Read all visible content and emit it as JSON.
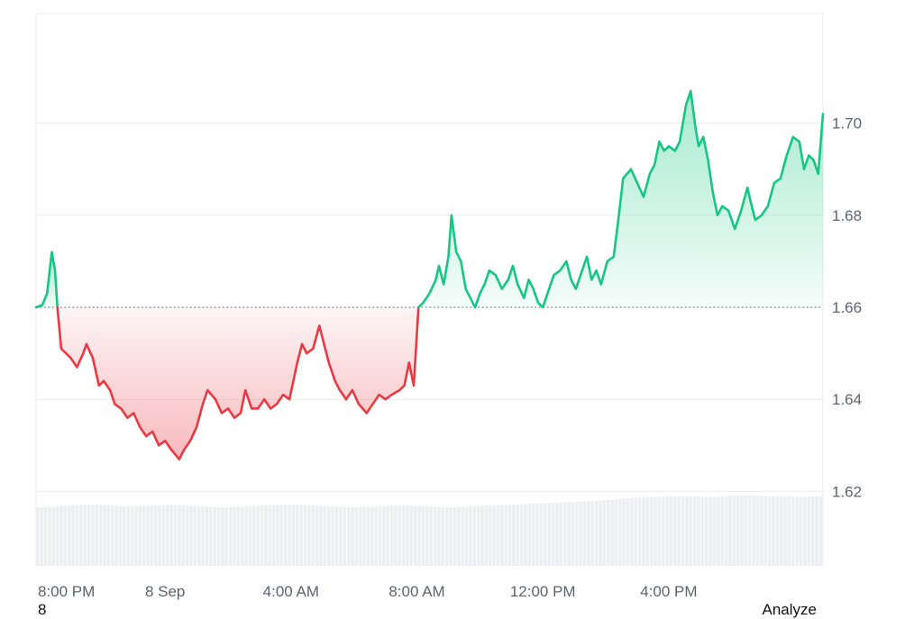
{
  "chart_data": {
    "type": "area",
    "baseline": 1.66,
    "ylim": [
      1.6,
      1.72
    ],
    "y_ticks": [
      {
        "value": 1.7,
        "label": "1.70"
      },
      {
        "value": 1.68,
        "label": "1.68"
      },
      {
        "value": 1.66,
        "label": "1.66"
      },
      {
        "value": 1.64,
        "label": "1.64"
      },
      {
        "value": 1.62,
        "label": "1.62"
      }
    ],
    "x_ticks": [
      {
        "hours": 0.0,
        "label": "8:00 PM"
      },
      {
        "hours": 4.0,
        "label": "8 Sep"
      },
      {
        "hours": 8.0,
        "label": "4:00 AM"
      },
      {
        "hours": 12.0,
        "label": "8:00 AM"
      },
      {
        "hours": 16.0,
        "label": "12:00 PM"
      },
      {
        "hours": 20.0,
        "label": "4:00 PM"
      }
    ],
    "xlim_hours": [
      -0.1,
      24.9
    ],
    "colors": {
      "up": "#16c784",
      "down": "#ea3943",
      "up_fill": "#16c784",
      "down_fill": "#ea3943",
      "grid": "#e9ecef",
      "volume": "#eceef1",
      "baseline": "#6b7280"
    },
    "series": [
      {
        "points": [
          [
            -0.1,
            1.66
          ],
          [
            0.1,
            1.6605
          ],
          [
            0.25,
            1.663
          ],
          [
            0.4,
            1.672
          ],
          [
            0.5,
            1.668
          ],
          [
            0.58,
            1.66
          ],
          [
            0.7,
            1.651
          ],
          [
            0.85,
            1.65
          ],
          [
            1.0,
            1.649
          ],
          [
            1.2,
            1.647
          ],
          [
            1.4,
            1.65
          ],
          [
            1.5,
            1.652
          ],
          [
            1.7,
            1.649
          ],
          [
            1.9,
            1.643
          ],
          [
            2.05,
            1.644
          ],
          [
            2.25,
            1.642
          ],
          [
            2.4,
            1.639
          ],
          [
            2.6,
            1.638
          ],
          [
            2.8,
            1.636
          ],
          [
            3.0,
            1.637
          ],
          [
            3.2,
            1.634
          ],
          [
            3.4,
            1.632
          ],
          [
            3.6,
            1.633
          ],
          [
            3.8,
            1.63
          ],
          [
            4.0,
            1.631
          ],
          [
            4.2,
            1.629
          ],
          [
            4.45,
            1.627
          ],
          [
            4.6,
            1.629
          ],
          [
            4.8,
            1.631
          ],
          [
            5.0,
            1.634
          ],
          [
            5.2,
            1.639
          ],
          [
            5.35,
            1.642
          ],
          [
            5.6,
            1.64
          ],
          [
            5.8,
            1.637
          ],
          [
            6.0,
            1.638
          ],
          [
            6.2,
            1.636
          ],
          [
            6.4,
            1.637
          ],
          [
            6.55,
            1.642
          ],
          [
            6.75,
            1.638
          ],
          [
            6.95,
            1.638
          ],
          [
            7.15,
            1.64
          ],
          [
            7.35,
            1.638
          ],
          [
            7.55,
            1.639
          ],
          [
            7.75,
            1.641
          ],
          [
            7.95,
            1.64
          ],
          [
            8.2,
            1.648
          ],
          [
            8.35,
            1.652
          ],
          [
            8.5,
            1.65
          ],
          [
            8.7,
            1.651
          ],
          [
            8.9,
            1.656
          ],
          [
            9.05,
            1.652
          ],
          [
            9.2,
            1.648
          ],
          [
            9.4,
            1.644
          ],
          [
            9.55,
            1.642
          ],
          [
            9.75,
            1.64
          ],
          [
            9.95,
            1.642
          ],
          [
            10.15,
            1.639
          ],
          [
            10.4,
            1.637
          ],
          [
            10.6,
            1.639
          ],
          [
            10.8,
            1.641
          ],
          [
            11.0,
            1.64
          ],
          [
            11.2,
            1.641
          ],
          [
            11.45,
            1.642
          ],
          [
            11.6,
            1.643
          ],
          [
            11.75,
            1.648
          ],
          [
            11.9,
            1.643
          ],
          [
            12.05,
            1.66
          ],
          [
            12.2,
            1.661
          ],
          [
            12.4,
            1.663
          ],
          [
            12.6,
            1.666
          ],
          [
            12.7,
            1.669
          ],
          [
            12.85,
            1.665
          ],
          [
            13.0,
            1.671
          ],
          [
            13.1,
            1.68
          ],
          [
            13.25,
            1.672
          ],
          [
            13.4,
            1.67
          ],
          [
            13.55,
            1.664
          ],
          [
            13.7,
            1.662
          ],
          [
            13.85,
            1.66
          ],
          [
            14.0,
            1.663
          ],
          [
            14.15,
            1.665
          ],
          [
            14.3,
            1.668
          ],
          [
            14.5,
            1.667
          ],
          [
            14.7,
            1.664
          ],
          [
            14.9,
            1.666
          ],
          [
            15.05,
            1.669
          ],
          [
            15.2,
            1.665
          ],
          [
            15.4,
            1.662
          ],
          [
            15.55,
            1.666
          ],
          [
            15.7,
            1.664
          ],
          [
            15.85,
            1.661
          ],
          [
            16.0,
            1.66
          ],
          [
            16.2,
            1.664
          ],
          [
            16.35,
            1.667
          ],
          [
            16.55,
            1.668
          ],
          [
            16.75,
            1.67
          ],
          [
            16.9,
            1.666
          ],
          [
            17.05,
            1.664
          ],
          [
            17.2,
            1.667
          ],
          [
            17.4,
            1.671
          ],
          [
            17.55,
            1.666
          ],
          [
            17.7,
            1.668
          ],
          [
            17.85,
            1.665
          ],
          [
            18.05,
            1.67
          ],
          [
            18.25,
            1.671
          ],
          [
            18.4,
            1.679
          ],
          [
            18.55,
            1.688
          ],
          [
            18.8,
            1.69
          ],
          [
            19.0,
            1.687
          ],
          [
            19.2,
            1.684
          ],
          [
            19.4,
            1.689
          ],
          [
            19.55,
            1.691
          ],
          [
            19.7,
            1.696
          ],
          [
            19.85,
            1.694
          ],
          [
            20.0,
            1.695
          ],
          [
            20.2,
            1.694
          ],
          [
            20.35,
            1.696
          ],
          [
            20.45,
            1.7
          ],
          [
            20.55,
            1.704
          ],
          [
            20.7,
            1.707
          ],
          [
            20.85,
            1.699
          ],
          [
            20.95,
            1.695
          ],
          [
            21.1,
            1.697
          ],
          [
            21.25,
            1.692
          ],
          [
            21.4,
            1.685
          ],
          [
            21.55,
            1.68
          ],
          [
            21.7,
            1.682
          ],
          [
            21.9,
            1.681
          ],
          [
            22.1,
            1.677
          ],
          [
            22.3,
            1.681
          ],
          [
            22.5,
            1.686
          ],
          [
            22.6,
            1.683
          ],
          [
            22.75,
            1.679
          ],
          [
            22.95,
            1.68
          ],
          [
            23.15,
            1.682
          ],
          [
            23.35,
            1.687
          ],
          [
            23.55,
            1.688
          ],
          [
            23.75,
            1.693
          ],
          [
            23.95,
            1.697
          ],
          [
            24.15,
            1.696
          ],
          [
            24.3,
            1.69
          ],
          [
            24.45,
            1.693
          ],
          [
            24.6,
            1.692
          ],
          [
            24.75,
            1.689
          ],
          [
            24.9,
            1.702
          ]
        ]
      }
    ],
    "volume_relative": [
      0.72,
      0.73,
      0.75,
      0.76,
      0.74,
      0.73,
      0.74,
      0.75,
      0.74,
      0.73,
      0.72,
      0.73,
      0.74,
      0.75,
      0.76,
      0.74,
      0.73,
      0.72,
      0.73,
      0.74,
      0.74,
      0.73,
      0.72,
      0.73,
      0.74,
      0.75,
      0.76,
      0.77,
      0.78,
      0.79,
      0.8,
      0.82,
      0.84,
      0.85,
      0.86,
      0.86,
      0.85,
      0.86,
      0.87,
      0.86,
      0.86,
      0.85,
      0.86
    ]
  },
  "footer": {
    "left_text": "8",
    "right_text": "Analyze"
  }
}
